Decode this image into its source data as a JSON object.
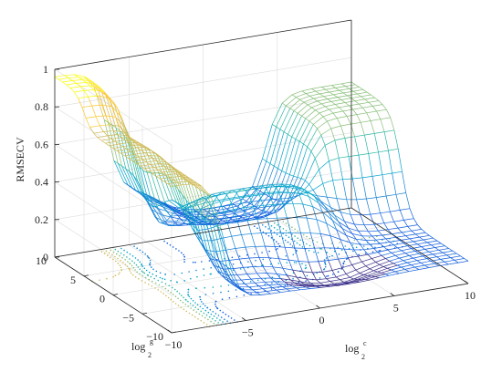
{
  "chart_data": {
    "type": "surface",
    "xlabel": "log",
    "xlabel_sub": "2",
    "xlabel_sup": "c",
    "ylabel": "log",
    "ylabel_sub": "2",
    "ylabel_sup": "g",
    "zlabel": "RMSECV",
    "xlim": [
      -10,
      10
    ],
    "ylim": [
      -10,
      10
    ],
    "zlim": [
      0,
      1
    ],
    "x_ticks": [
      "−10",
      "−5",
      "0",
      "5",
      "10"
    ],
    "y_ticks": [
      "−10",
      "−5",
      "0",
      "5",
      "10"
    ],
    "z_ticks": [
      "0",
      "0.2",
      "0.4",
      "0.6",
      "0.8",
      "1"
    ],
    "grid": true,
    "contour_on_floor": true,
    "colormap": "parula",
    "colors": [
      "#352a87",
      "#0f5cdd",
      "#1481d6",
      "#06a4ca",
      "#2eb7a4",
      "#87bf77",
      "#d1bb59",
      "#fec832",
      "#f9fb0e"
    ]
  }
}
